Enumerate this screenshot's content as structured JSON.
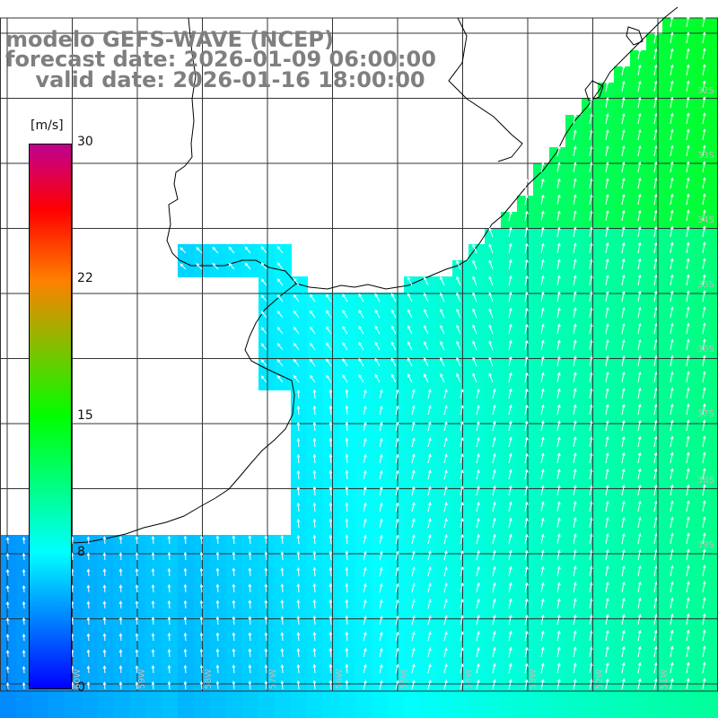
{
  "titles": {
    "model": "modelo GEFS-WAVE (NCEP)",
    "forecast": "forecast date: 2026-01-09 06:00:00",
    "valid": "    valid date: 2026-01-16 18:00:00"
  },
  "colorbar": {
    "unit": "[m/s]",
    "min": 0,
    "max": 30,
    "tick_labels": [
      "30",
      "22",
      "15",
      "8",
      "0"
    ],
    "tick_values": [
      30,
      22.5,
      15,
      7.5,
      0
    ],
    "stops": [
      {
        "pos": 0.0,
        "color": "#0000ff"
      },
      {
        "pos": 0.25,
        "color": "#00ffff"
      },
      {
        "pos": 0.5,
        "color": "#00ff00"
      },
      {
        "pos": 0.75,
        "color": "#ff8000"
      },
      {
        "pos": 0.88,
        "color": "#ff0000"
      },
      {
        "pos": 1.0,
        "color": "#c00090"
      }
    ]
  },
  "lat_labels": [
    "32S",
    "33S",
    "34S",
    "35S",
    "36S",
    "37S",
    "38S",
    "39S"
  ],
  "lon_labels": [
    "60W",
    "59W",
    "58W",
    "57W",
    "56W",
    "55W",
    "54W",
    "53W",
    "52W",
    "51W"
  ],
  "field": {
    "wind_direction": "from SSW toward NNE",
    "speed_range_mps": [
      4,
      12
    ]
  },
  "colors": {
    "land": "#ffffff",
    "coast": "#000000",
    "grid": "#333333",
    "vector": "#ffffff",
    "title": "#7f7f7f"
  }
}
